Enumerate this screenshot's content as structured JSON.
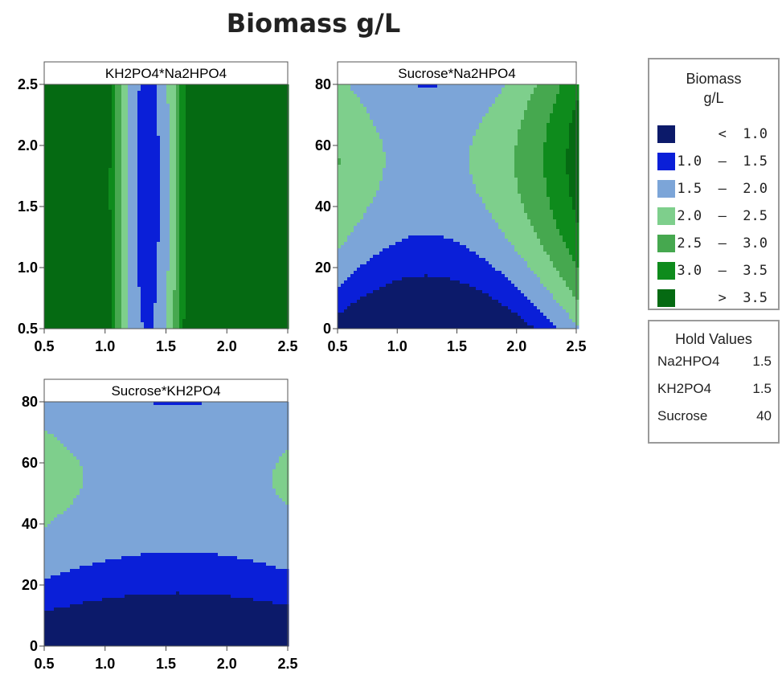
{
  "title": "Biomass g/L",
  "chart_data": [
    {
      "type": "contour",
      "panel_title": "KH2PO4*Na2HPO4",
      "x_ticks": [
        "0.5",
        "1.0",
        "1.5",
        "2.0",
        "2.5"
      ],
      "y_ticks": [
        "0.5",
        "1.0",
        "1.5",
        "2.0",
        "2.5"
      ],
      "xlim": [
        0.5,
        2.5
      ],
      "ylim": [
        0.5,
        2.5
      ],
      "response": {
        "type": "ellipse",
        "cx": 1.35,
        "cy": 1.65,
        "min": 1.3,
        "ax": 0.0625,
        "ay": 0.8333
      }
    },
    {
      "type": "contour",
      "panel_title": "Sucrose*Na2HPO4",
      "x_ticks": [
        "0.5",
        "1.0",
        "1.5",
        "2.0",
        "2.5"
      ],
      "y_ticks": [
        "0",
        "20",
        "40",
        "60",
        "80"
      ],
      "xlim": [
        0.5,
        2.5
      ],
      "ylim": [
        0,
        80
      ],
      "response": {
        "type": "saddle",
        "cx": 1.25,
        "cy": 55,
        "base": 1.85,
        "ax": 1.2,
        "ay": 0.000667
      }
    },
    {
      "type": "contour",
      "panel_title": "Sucrose*KH2PO4",
      "x_ticks": [
        "0.5",
        "1.0",
        "1.5",
        "2.0",
        "2.5"
      ],
      "y_ticks": [
        "0",
        "20",
        "40",
        "60",
        "80"
      ],
      "xlim": [
        0.5,
        2.5
      ],
      "ylim": [
        0,
        80
      ],
      "response": {
        "type": "saddle",
        "cx": 1.6,
        "cy": 55,
        "base": 1.85,
        "ax": 0.25,
        "ay": 0.000667
      }
    }
  ],
  "legend": {
    "title_line1": "Biomass",
    "title_line2": "g/L",
    "items": [
      {
        "label": "<  1.0",
        "color": "#0c1a6a"
      },
      {
        "label": "1.0  –  1.5",
        "color": "#0a1fd8"
      },
      {
        "label": "1.5  –  2.0",
        "color": "#7ca5d8"
      },
      {
        "label": "2.0  –  2.5",
        "color": "#7ecf8c"
      },
      {
        "label": "2.5  –  3.0",
        "color": "#46a84f"
      },
      {
        "label": "3.0  –  3.5",
        "color": "#0e8b1c"
      },
      {
        "label": ">  3.5",
        "color": "#056a12"
      }
    ],
    "breaks": [
      1.0,
      1.5,
      2.0,
      2.5,
      3.0,
      3.5
    ]
  },
  "hold_values": {
    "title": "Hold Values",
    "rows": [
      {
        "name": "Na2HPO4",
        "value": "1.5"
      },
      {
        "name": "KH2PO4",
        "value": "1.5"
      },
      {
        "name": "Sucrose",
        "value": "40"
      }
    ]
  }
}
